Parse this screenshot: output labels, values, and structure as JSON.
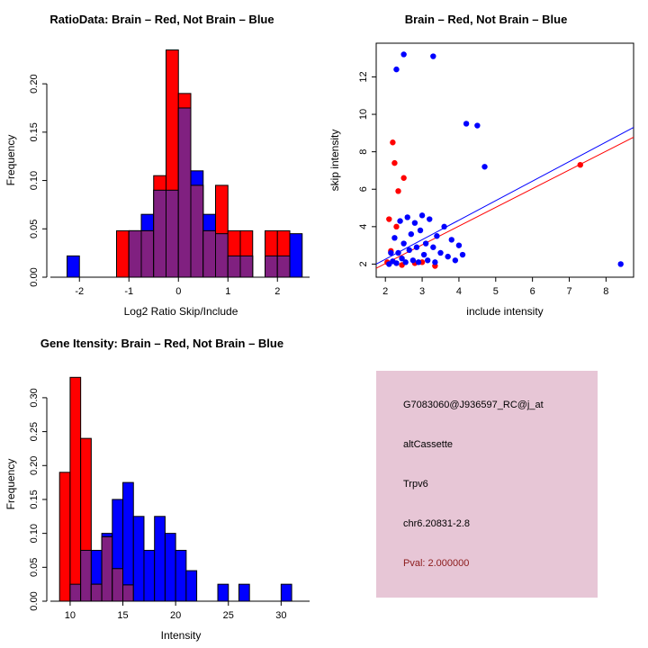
{
  "chart_data": [
    {
      "type": "histogram",
      "title": "RatioData: Brain – Red, Not Brain – Blue",
      "xlabel": "Log2 Ratio Skip/Include",
      "ylabel": "Frequency",
      "xlim": [
        -2.55,
        2.65
      ],
      "ylim": [
        0,
        0.242
      ],
      "xticks": [
        -2,
        -1,
        0,
        1,
        2
      ],
      "xtick_labels": [
        "-2",
        "-1",
        "0",
        "1",
        "2"
      ],
      "yticks": [
        0,
        0.05,
        0.1,
        0.15,
        0.2
      ],
      "ytick_labels": [
        "0.00",
        "0.05",
        "0.10",
        "0.15",
        "0.20"
      ],
      "bin_width": 0.25,
      "bin_starts": [
        -2.25,
        -2,
        -1.75,
        -1.5,
        -1.25,
        -1,
        -0.75,
        -0.5,
        -0.25,
        0,
        0.25,
        0.5,
        0.75,
        1,
        1.25,
        1.5,
        1.75,
        2,
        2.25
      ],
      "series": [
        {
          "name": "Brain",
          "color": "#FF0000",
          "values": [
            0,
            0,
            0,
            0,
            0.048,
            0.048,
            0.048,
            0.105,
            0.235,
            0.19,
            0.095,
            0.048,
            0.095,
            0.048,
            0.048,
            0,
            0.048,
            0.048,
            0
          ]
        },
        {
          "name": "Not Brain",
          "color": "#0000FF",
          "values": [
            0.022,
            0,
            0,
            0,
            0,
            0.048,
            0.065,
            0.09,
            0.09,
            0.175,
            0.11,
            0.065,
            0.045,
            0.022,
            0.022,
            0,
            0.022,
            0.022,
            0.045
          ]
        }
      ],
      "overlap_color": "#802080",
      "grid": false,
      "legend": "none"
    },
    {
      "type": "scatter",
      "title": "Brain – Red, Not Brain – Blue",
      "xlabel": "include intensity",
      "ylabel": "skip intensity",
      "xlim": [
        1.75,
        8.75
      ],
      "ylim": [
        1.3,
        13.8
      ],
      "xticks": [
        2,
        3,
        4,
        5,
        6,
        7,
        8
      ],
      "xtick_labels": [
        "2",
        "3",
        "4",
        "5",
        "6",
        "7",
        "8"
      ],
      "yticks": [
        2,
        4,
        6,
        8,
        10,
        12
      ],
      "ytick_labels": [
        "2",
        "4",
        "6",
        "8",
        "10",
        "12"
      ],
      "series": [
        {
          "name": "Brain",
          "color": "#FF0000",
          "points": [
            [
              2.2,
              8.5
            ],
            [
              2.25,
              7.4
            ],
            [
              2.5,
              6.6
            ],
            [
              2.35,
              5.9
            ],
            [
              7.3,
              7.3
            ],
            [
              2.1,
              4.4
            ],
            [
              2.3,
              4.0
            ],
            [
              2.15,
              2.7
            ],
            [
              2.05,
              2.1
            ],
            [
              2.45,
              1.95
            ],
            [
              2.8,
              2.05
            ],
            [
              3.0,
              2.1
            ],
            [
              3.35,
              1.9
            ]
          ]
        },
        {
          "name": "Not Brain",
          "color": "#0000FF",
          "points": [
            [
              2.5,
              13.2
            ],
            [
              3.3,
              13.1
            ],
            [
              2.3,
              12.4
            ],
            [
              4.2,
              9.5
            ],
            [
              4.5,
              9.4
            ],
            [
              4.7,
              7.2
            ],
            [
              8.4,
              2.0
            ],
            [
              2.1,
              2.0
            ],
            [
              2.15,
              2.6
            ],
            [
              2.2,
              2.15
            ],
            [
              2.25,
              3.4
            ],
            [
              2.3,
              2.05
            ],
            [
              2.35,
              2.6
            ],
            [
              2.4,
              4.3
            ],
            [
              2.45,
              2.3
            ],
            [
              2.5,
              3.1
            ],
            [
              2.55,
              2.1
            ],
            [
              2.6,
              4.5
            ],
            [
              2.65,
              2.75
            ],
            [
              2.7,
              3.6
            ],
            [
              2.75,
              2.2
            ],
            [
              2.8,
              4.2
            ],
            [
              2.85,
              2.9
            ],
            [
              2.9,
              2.1
            ],
            [
              2.95,
              3.8
            ],
            [
              3.0,
              4.6
            ],
            [
              3.05,
              2.5
            ],
            [
              3.1,
              3.1
            ],
            [
              3.15,
              2.2
            ],
            [
              3.2,
              4.4
            ],
            [
              3.3,
              2.9
            ],
            [
              3.35,
              2.1
            ],
            [
              3.4,
              3.5
            ],
            [
              3.5,
              2.6
            ],
            [
              3.6,
              4.0
            ],
            [
              3.7,
              2.4
            ],
            [
              3.8,
              3.3
            ],
            [
              3.9,
              2.2
            ],
            [
              4.0,
              3.0
            ],
            [
              4.1,
              2.5
            ]
          ]
        }
      ],
      "lines": [
        {
          "name": "brain-fit-line",
          "color": "#FF0000",
          "from": [
            1.75,
            1.78
          ],
          "to": [
            8.75,
            8.78
          ]
        },
        {
          "name": "notbrain-fit-line",
          "color": "#0000FF",
          "from": [
            1.75,
            2.0
          ],
          "to": [
            8.75,
            9.3
          ]
        }
      ],
      "grid": false,
      "legend": "none"
    },
    {
      "type": "histogram",
      "title": "Gene Itensity: Brain – Red, Not Brain – Blue",
      "xlabel": "Intensity",
      "ylabel": "Frequency",
      "xlim": [
        8.3,
        32.7
      ],
      "ylim": [
        0,
        0.345
      ],
      "xticks": [
        10,
        15,
        20,
        25,
        30
      ],
      "xtick_labels": [
        "10",
        "15",
        "20",
        "25",
        "30"
      ],
      "yticks": [
        0,
        0.05,
        0.1,
        0.15,
        0.2,
        0.25,
        0.3
      ],
      "ytick_labels": [
        "0.00",
        "0.05",
        "0.10",
        "0.15",
        "0.20",
        "0.25",
        "0.30"
      ],
      "bin_width": 1,
      "bin_starts": [
        9,
        10,
        11,
        12,
        13,
        14,
        15,
        16,
        17,
        18,
        19,
        20,
        21,
        22,
        23,
        24,
        25,
        26,
        27,
        28,
        29,
        30,
        31
      ],
      "series": [
        {
          "name": "Brain",
          "color": "#FF0000",
          "values": [
            0.19,
            0.33,
            0.24,
            0.025,
            0.095,
            0.048,
            0.024,
            0,
            0,
            0,
            0,
            0,
            0,
            0,
            0,
            0,
            0,
            0,
            0,
            0,
            0,
            0,
            0
          ]
        },
        {
          "name": "Not Brain",
          "color": "#0000FF",
          "values": [
            0,
            0.025,
            0.075,
            0.075,
            0.1,
            0.15,
            0.175,
            0.125,
            0.075,
            0.125,
            0.1,
            0.075,
            0.045,
            0,
            0,
            0.025,
            0,
            0.025,
            0,
            0,
            0,
            0.025,
            0
          ]
        }
      ],
      "overlap_color": "#802080",
      "grid": false,
      "legend": "none"
    }
  ],
  "info_box": {
    "bg": "#E7C6D6",
    "text_color": "#000000",
    "pval_color": "#8B1A1A",
    "lines": [
      "G7083060@J936597_RC@j_at",
      "altCassette",
      "Trpv6",
      "chr6.20831-2.8",
      "Pval: 2.000000"
    ]
  }
}
